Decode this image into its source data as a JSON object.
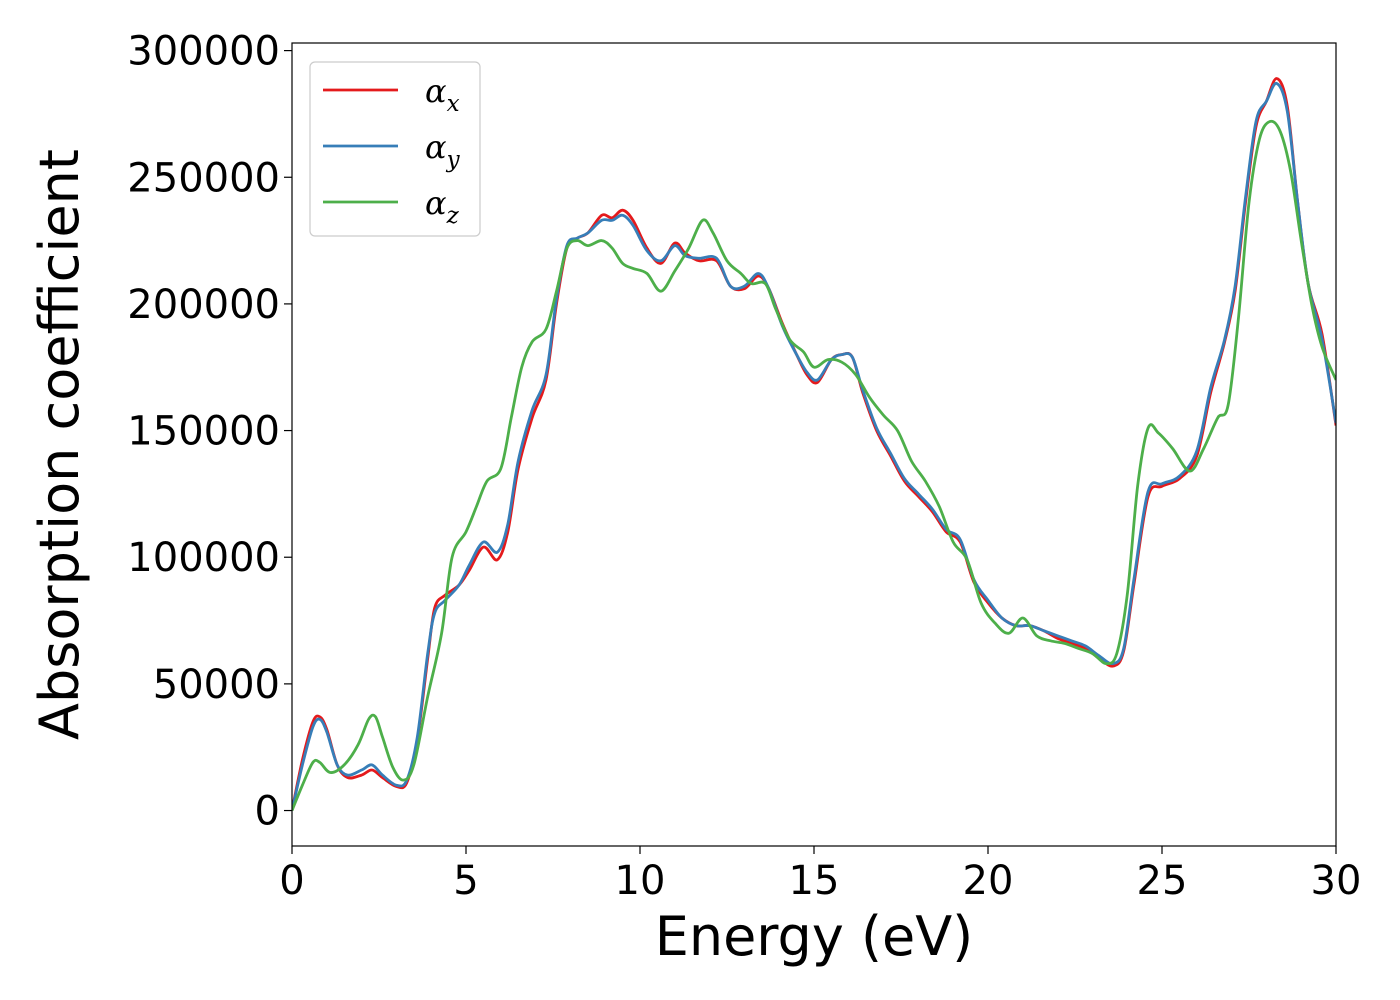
{
  "chart_data": {
    "type": "line",
    "xlabel": "Energy (eV)",
    "ylabel": "Absorption coefficient",
    "xlim": [
      0,
      30
    ],
    "ylim": [
      -14000,
      303000
    ],
    "xticks": [
      0,
      5,
      10,
      15,
      20,
      25,
      30
    ],
    "yticks": [
      0,
      50000,
      100000,
      150000,
      200000,
      250000,
      300000
    ],
    "grid": false,
    "legend_position": "top-left",
    "series": [
      {
        "name": "α_x",
        "label_main": "α",
        "label_sub": "x",
        "color": "#e41a1c",
        "points": [
          [
            0,
            0
          ],
          [
            0.3,
            20000
          ],
          [
            0.6,
            35000
          ],
          [
            0.8,
            37000
          ],
          [
            1.0,
            32000
          ],
          [
            1.3,
            18000
          ],
          [
            1.6,
            13000
          ],
          [
            2.0,
            14000
          ],
          [
            2.3,
            16000
          ],
          [
            2.6,
            13000
          ],
          [
            3.0,
            9500
          ],
          [
            3.3,
            11000
          ],
          [
            3.6,
            28000
          ],
          [
            3.9,
            60000
          ],
          [
            4.1,
            80000
          ],
          [
            4.4,
            85000
          ],
          [
            4.8,
            89000
          ],
          [
            5.1,
            95000
          ],
          [
            5.5,
            104000
          ],
          [
            5.9,
            99000
          ],
          [
            6.2,
            110000
          ],
          [
            6.5,
            135000
          ],
          [
            6.9,
            155000
          ],
          [
            7.3,
            170000
          ],
          [
            7.6,
            200000
          ],
          [
            7.9,
            222000
          ],
          [
            8.2,
            226000
          ],
          [
            8.5,
            228000
          ],
          [
            8.9,
            235000
          ],
          [
            9.2,
            234000
          ],
          [
            9.5,
            237000
          ],
          [
            9.8,
            233000
          ],
          [
            10.2,
            222000
          ],
          [
            10.6,
            216000
          ],
          [
            11.0,
            224000
          ],
          [
            11.3,
            220000
          ],
          [
            11.7,
            217000
          ],
          [
            12.2,
            217000
          ],
          [
            12.6,
            207000
          ],
          [
            13.0,
            206000
          ],
          [
            13.4,
            211000
          ],
          [
            13.7,
            206000
          ],
          [
            14.1,
            192000
          ],
          [
            14.5,
            180000
          ],
          [
            14.8,
            172000
          ],
          [
            15.1,
            169000
          ],
          [
            15.5,
            178000
          ],
          [
            15.8,
            180000
          ],
          [
            16.1,
            179000
          ],
          [
            16.4,
            165000
          ],
          [
            16.8,
            150000
          ],
          [
            17.2,
            140000
          ],
          [
            17.6,
            130000
          ],
          [
            18.0,
            124000
          ],
          [
            18.4,
            118000
          ],
          [
            18.8,
            110000
          ],
          [
            19.2,
            106000
          ],
          [
            19.6,
            90000
          ],
          [
            20.0,
            82000
          ],
          [
            20.4,
            76000
          ],
          [
            20.8,
            73000
          ],
          [
            21.2,
            73000
          ],
          [
            21.6,
            71000
          ],
          [
            22.0,
            68000
          ],
          [
            22.4,
            66000
          ],
          [
            22.8,
            64000
          ],
          [
            23.2,
            60000
          ],
          [
            23.6,
            57000
          ],
          [
            23.9,
            63000
          ],
          [
            24.2,
            90000
          ],
          [
            24.6,
            124000
          ],
          [
            25.0,
            128000
          ],
          [
            25.5,
            131000
          ],
          [
            26.0,
            140000
          ],
          [
            26.4,
            165000
          ],
          [
            26.8,
            185000
          ],
          [
            27.1,
            205000
          ],
          [
            27.4,
            240000
          ],
          [
            27.7,
            270000
          ],
          [
            28.0,
            280000
          ],
          [
            28.3,
            289000
          ],
          [
            28.6,
            278000
          ],
          [
            28.9,
            240000
          ],
          [
            29.2,
            208000
          ],
          [
            29.6,
            188000
          ],
          [
            30.0,
            152000
          ]
        ]
      },
      {
        "name": "α_y",
        "label_main": "α",
        "label_sub": "y",
        "color": "#377eb8",
        "points": [
          [
            0,
            0
          ],
          [
            0.3,
            18000
          ],
          [
            0.6,
            33000
          ],
          [
            0.8,
            36000
          ],
          [
            1.0,
            31000
          ],
          [
            1.3,
            18000
          ],
          [
            1.6,
            14000
          ],
          [
            2.0,
            16000
          ],
          [
            2.3,
            18000
          ],
          [
            2.6,
            14000
          ],
          [
            3.0,
            10000
          ],
          [
            3.3,
            12000
          ],
          [
            3.6,
            29000
          ],
          [
            3.9,
            62000
          ],
          [
            4.1,
            78000
          ],
          [
            4.4,
            83000
          ],
          [
            4.8,
            89000
          ],
          [
            5.1,
            97000
          ],
          [
            5.5,
            106000
          ],
          [
            5.9,
            102000
          ],
          [
            6.2,
            113000
          ],
          [
            6.5,
            138000
          ],
          [
            6.9,
            158000
          ],
          [
            7.3,
            172000
          ],
          [
            7.6,
            202000
          ],
          [
            7.9,
            223000
          ],
          [
            8.2,
            226000
          ],
          [
            8.5,
            228000
          ],
          [
            8.9,
            233000
          ],
          [
            9.2,
            233000
          ],
          [
            9.5,
            235000
          ],
          [
            9.8,
            231000
          ],
          [
            10.2,
            221000
          ],
          [
            10.6,
            217000
          ],
          [
            11.0,
            223000
          ],
          [
            11.3,
            219000
          ],
          [
            11.7,
            218000
          ],
          [
            12.2,
            218000
          ],
          [
            12.6,
            207000
          ],
          [
            13.0,
            207000
          ],
          [
            13.4,
            212000
          ],
          [
            13.7,
            206000
          ],
          [
            14.1,
            191000
          ],
          [
            14.5,
            180000
          ],
          [
            14.8,
            173000
          ],
          [
            15.1,
            170000
          ],
          [
            15.5,
            178000
          ],
          [
            15.8,
            180000
          ],
          [
            16.1,
            179000
          ],
          [
            16.4,
            166000
          ],
          [
            16.8,
            151000
          ],
          [
            17.2,
            141000
          ],
          [
            17.6,
            131000
          ],
          [
            18.0,
            125000
          ],
          [
            18.4,
            119000
          ],
          [
            18.8,
            111000
          ],
          [
            19.2,
            107000
          ],
          [
            19.6,
            91000
          ],
          [
            20.0,
            83000
          ],
          [
            20.4,
            76000
          ],
          [
            20.8,
            73000
          ],
          [
            21.2,
            73000
          ],
          [
            21.6,
            71000
          ],
          [
            22.0,
            69000
          ],
          [
            22.4,
            67000
          ],
          [
            22.8,
            65000
          ],
          [
            23.2,
            61000
          ],
          [
            23.6,
            58000
          ],
          [
            23.9,
            64000
          ],
          [
            24.2,
            92000
          ],
          [
            24.6,
            126000
          ],
          [
            25.0,
            129000
          ],
          [
            25.5,
            132000
          ],
          [
            26.0,
            142000
          ],
          [
            26.4,
            167000
          ],
          [
            26.8,
            186000
          ],
          [
            27.1,
            207000
          ],
          [
            27.4,
            242000
          ],
          [
            27.7,
            272000
          ],
          [
            28.0,
            280000
          ],
          [
            28.3,
            287000
          ],
          [
            28.6,
            276000
          ],
          [
            28.9,
            240000
          ],
          [
            29.2,
            208000
          ],
          [
            29.6,
            186000
          ],
          [
            30.0,
            153000
          ]
        ]
      },
      {
        "name": "α_z",
        "label_main": "α",
        "label_sub": "z",
        "color": "#4daf4a",
        "points": [
          [
            0,
            0
          ],
          [
            0.3,
            10000
          ],
          [
            0.6,
            19000
          ],
          [
            0.8,
            19000
          ],
          [
            1.1,
            15000
          ],
          [
            1.5,
            18000
          ],
          [
            1.9,
            26000
          ],
          [
            2.2,
            36000
          ],
          [
            2.4,
            37000
          ],
          [
            2.6,
            29000
          ],
          [
            2.9,
            17000
          ],
          [
            3.2,
            12000
          ],
          [
            3.5,
            18000
          ],
          [
            3.9,
            45000
          ],
          [
            4.3,
            70000
          ],
          [
            4.6,
            100000
          ],
          [
            5.0,
            110000
          ],
          [
            5.3,
            120000
          ],
          [
            5.6,
            130000
          ],
          [
            6.0,
            135000
          ],
          [
            6.3,
            155000
          ],
          [
            6.6,
            175000
          ],
          [
            6.9,
            185000
          ],
          [
            7.3,
            190000
          ],
          [
            7.6,
            205000
          ],
          [
            7.9,
            222000
          ],
          [
            8.2,
            225000
          ],
          [
            8.5,
            223000
          ],
          [
            8.9,
            225000
          ],
          [
            9.2,
            222000
          ],
          [
            9.5,
            216000
          ],
          [
            9.8,
            214000
          ],
          [
            10.2,
            212000
          ],
          [
            10.6,
            205000
          ],
          [
            11.0,
            213000
          ],
          [
            11.4,
            222000
          ],
          [
            11.8,
            233000
          ],
          [
            12.1,
            228000
          ],
          [
            12.5,
            217000
          ],
          [
            12.9,
            212000
          ],
          [
            13.2,
            208000
          ],
          [
            13.6,
            208000
          ],
          [
            13.9,
            198000
          ],
          [
            14.3,
            186000
          ],
          [
            14.7,
            181000
          ],
          [
            15.0,
            175000
          ],
          [
            15.4,
            178000
          ],
          [
            15.8,
            177000
          ],
          [
            16.2,
            172000
          ],
          [
            16.6,
            163000
          ],
          [
            17.0,
            156000
          ],
          [
            17.4,
            150000
          ],
          [
            17.8,
            138000
          ],
          [
            18.2,
            130000
          ],
          [
            18.6,
            120000
          ],
          [
            19.0,
            106000
          ],
          [
            19.4,
            99000
          ],
          [
            19.8,
            82000
          ],
          [
            20.2,
            74000
          ],
          [
            20.6,
            70000
          ],
          [
            21.0,
            76000
          ],
          [
            21.4,
            69000
          ],
          [
            21.8,
            67000
          ],
          [
            22.2,
            66000
          ],
          [
            22.6,
            64000
          ],
          [
            23.0,
            62000
          ],
          [
            23.4,
            58000
          ],
          [
            23.7,
            62000
          ],
          [
            24.0,
            85000
          ],
          [
            24.3,
            128000
          ],
          [
            24.6,
            151000
          ],
          [
            24.9,
            149000
          ],
          [
            25.3,
            143000
          ],
          [
            25.8,
            134000
          ],
          [
            26.2,
            143000
          ],
          [
            26.6,
            155000
          ],
          [
            26.9,
            160000
          ],
          [
            27.2,
            195000
          ],
          [
            27.5,
            240000
          ],
          [
            27.8,
            265000
          ],
          [
            28.1,
            272000
          ],
          [
            28.4,
            268000
          ],
          [
            28.7,
            252000
          ],
          [
            29.0,
            225000
          ],
          [
            29.3,
            200000
          ],
          [
            29.6,
            183000
          ],
          [
            30.0,
            170000
          ]
        ]
      }
    ]
  }
}
